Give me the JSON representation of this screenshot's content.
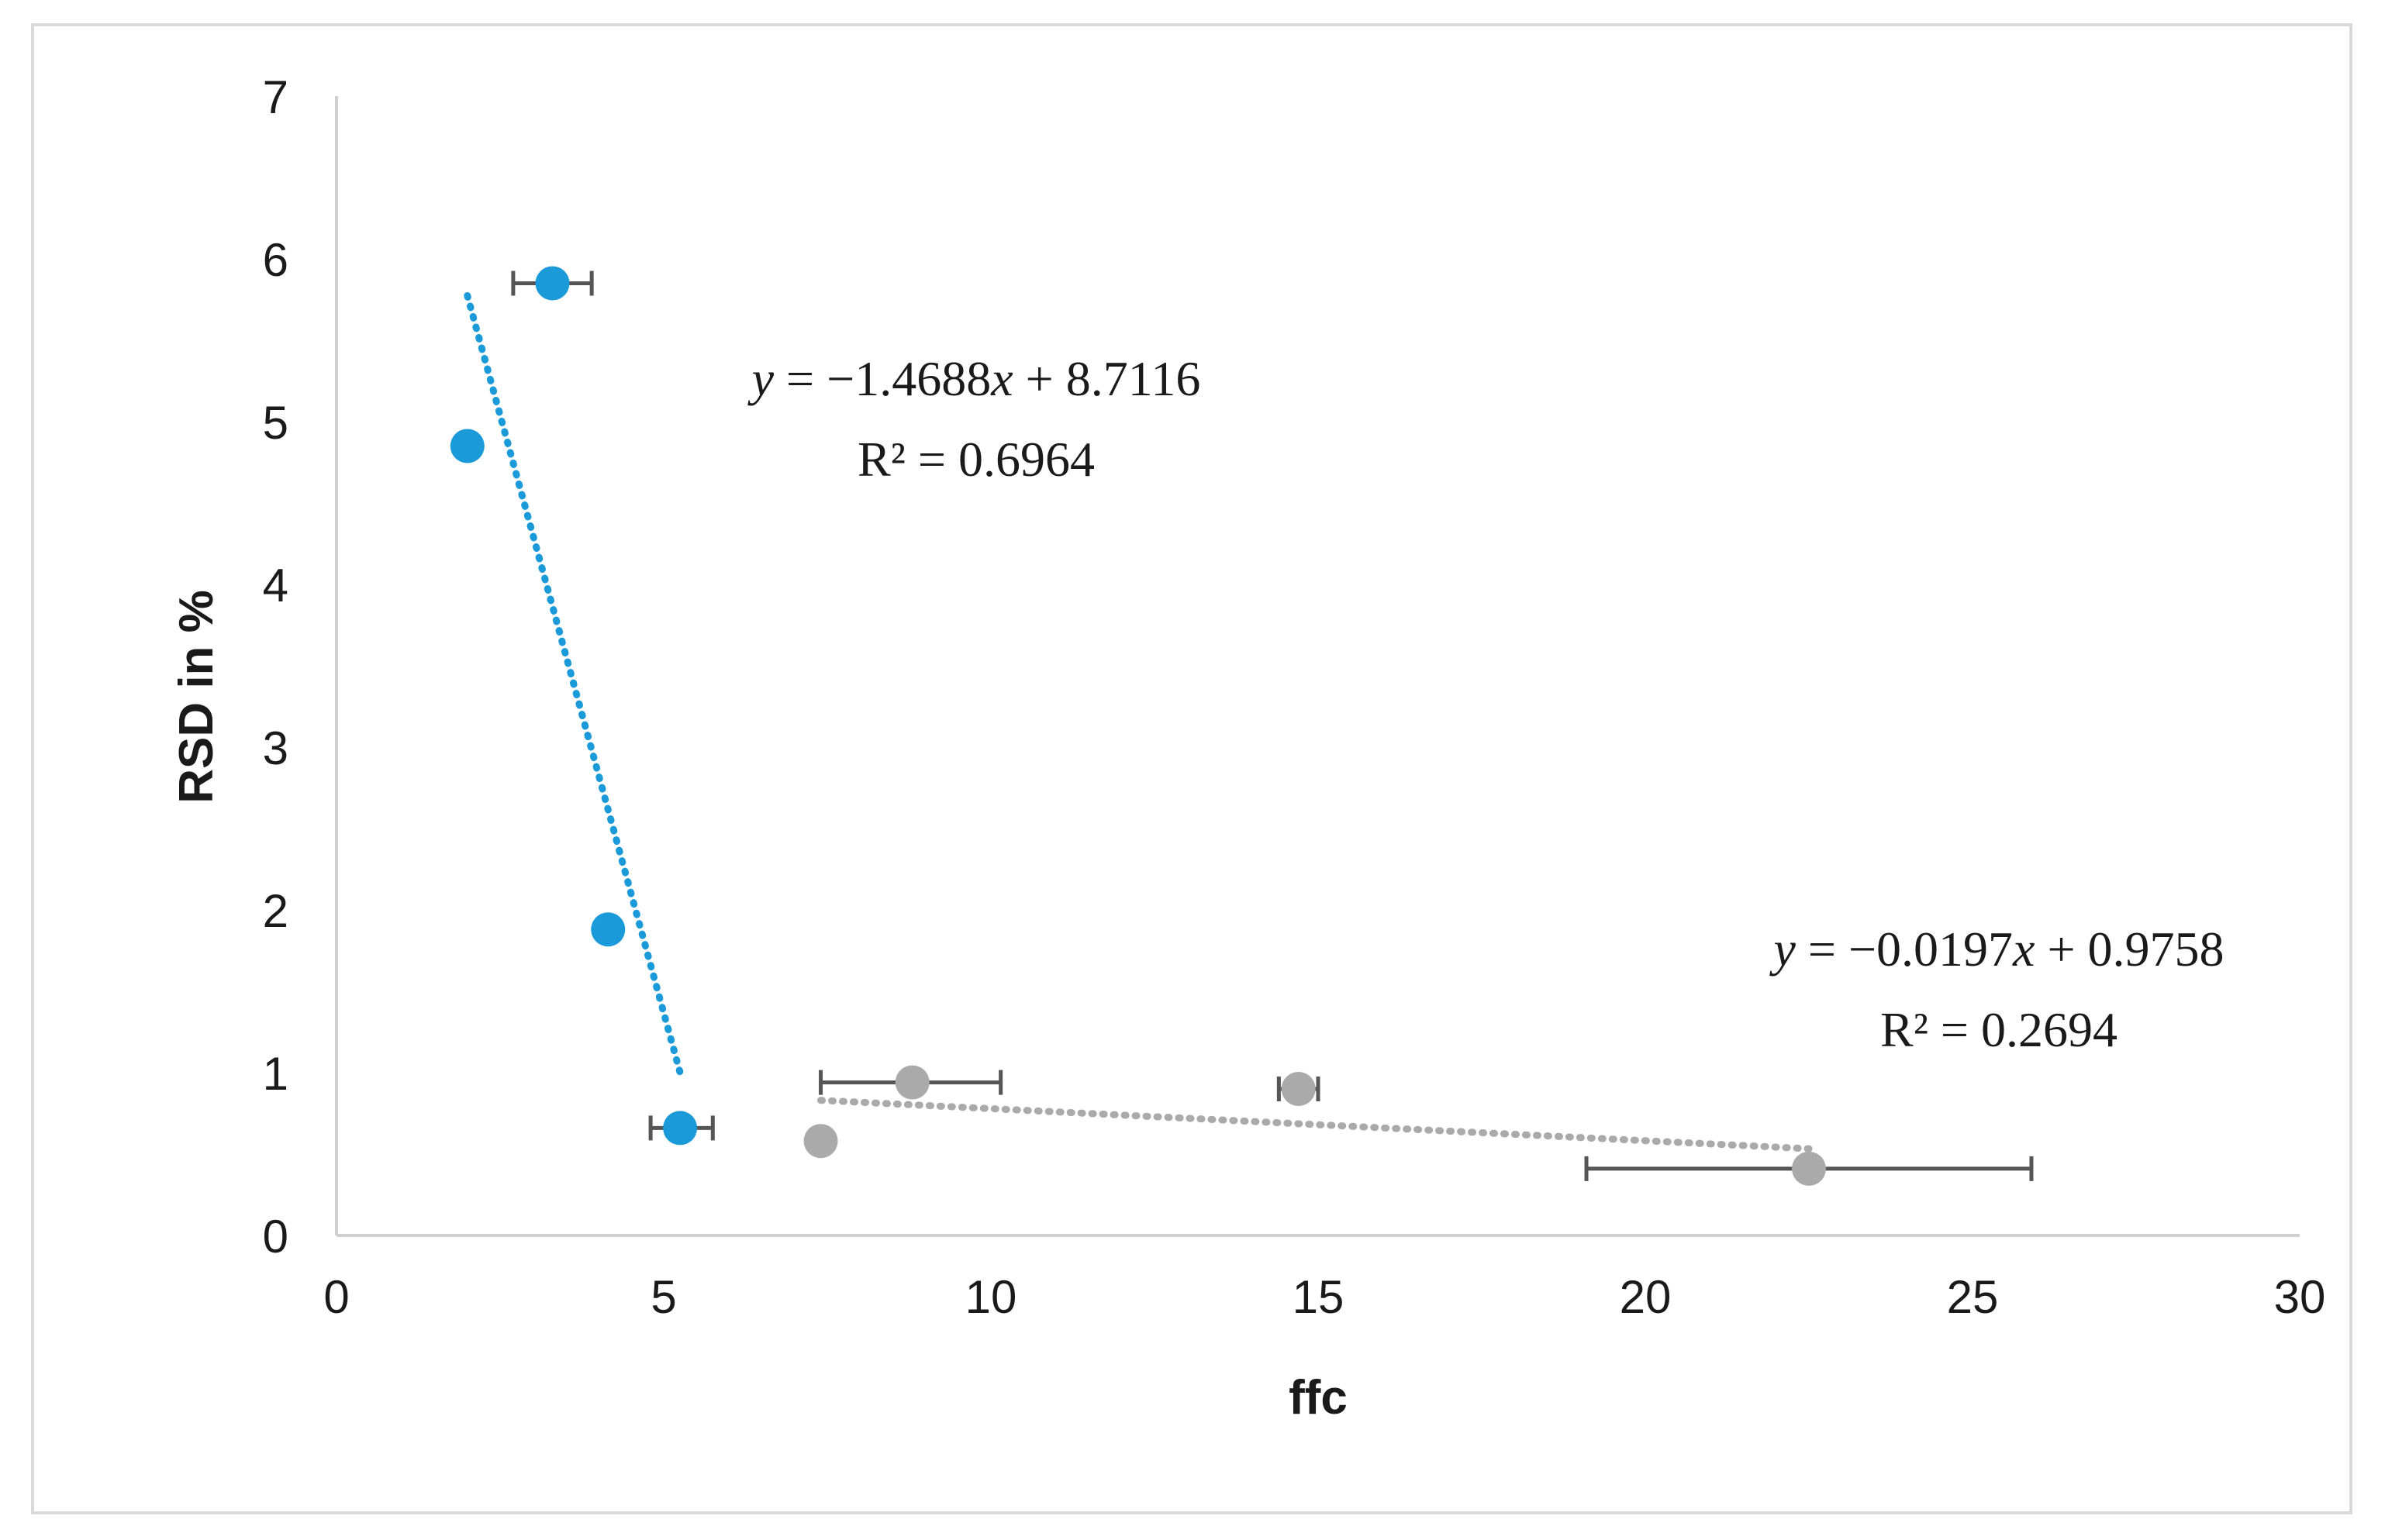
{
  "chart_data": {
    "type": "scatter",
    "title": "",
    "xlabel": "ffc",
    "ylabel": "RSD in %",
    "xlim": [
      0,
      30
    ],
    "ylim": [
      0,
      7
    ],
    "xticks": [
      "0",
      "5",
      "10",
      "15",
      "20",
      "25",
      "30"
    ],
    "yticks": [
      "0",
      "1",
      "2",
      "3",
      "4",
      "5",
      "6",
      "7"
    ],
    "grid": false,
    "colors": {
      "series_blue": "#1a9ad9",
      "series_gray": "#aaaaaa",
      "error_bar": "#555555",
      "axis": "#d0d0d0"
    },
    "series": [
      {
        "name": "blue",
        "points": [
          {
            "x": 3.3,
            "y": 5.85,
            "xerr": [
              2.7,
              3.9
            ]
          },
          {
            "x": 2.0,
            "y": 4.85
          },
          {
            "x": 4.15,
            "y": 1.88
          },
          {
            "x": 5.25,
            "y": 0.66,
            "xerr": [
              4.8,
              5.75
            ]
          }
        ],
        "trendline": {
          "x_start": 2.0,
          "x_end": 5.25,
          "slope": -1.4688,
          "intercept": 8.7116
        },
        "equation": {
          "prefix": "y",
          "rhs": " = −1.4688",
          "var": "x",
          "tail": " + 8.7116",
          "r2": "R² = 0.6964"
        }
      },
      {
        "name": "gray",
        "points": [
          {
            "x": 7.4,
            "y": 0.58
          },
          {
            "x": 8.8,
            "y": 0.94,
            "xerr": [
              7.4,
              10.15
            ]
          },
          {
            "x": 14.7,
            "y": 0.9,
            "xerr": [
              14.4,
              15.0
            ]
          },
          {
            "x": 22.5,
            "y": 0.41,
            "xerr": [
              19.1,
              25.9
            ]
          }
        ],
        "trendline": {
          "x_start": 7.4,
          "x_end": 22.5,
          "slope": -0.0197,
          "intercept": 0.9758
        },
        "equation": {
          "prefix": "y",
          "rhs": " = −0.0197",
          "var": "x",
          "tail": " + 0.9758",
          "r2": "R² = 0.2694"
        }
      }
    ]
  }
}
